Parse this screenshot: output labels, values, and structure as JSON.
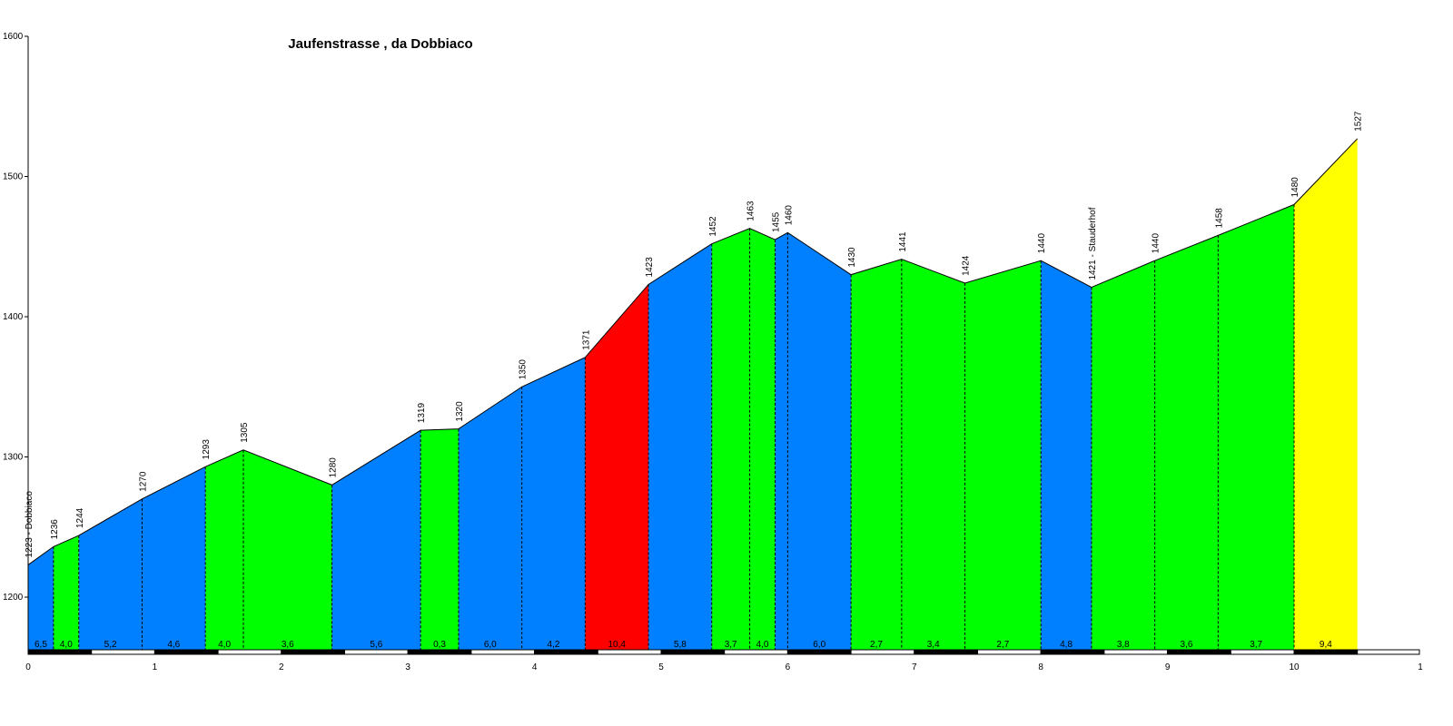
{
  "chart_data": {
    "type": "area",
    "title": "Jaufenstrasse , da Dobbiaco",
    "xlabel": "",
    "ylabel": "",
    "xlim": [
      0,
      11
    ],
    "ylim": [
      1160,
      1600
    ],
    "x_ticks": [
      "0",
      "1",
      "2",
      "3",
      "4",
      "5",
      "6",
      "7",
      "8",
      "9",
      "10",
      "1"
    ],
    "y_ticks": [
      "1200",
      "1300",
      "1400",
      "1500",
      "1600"
    ],
    "grid": false,
    "legend": "none",
    "points": [
      {
        "x": 0.0,
        "y": 1223,
        "label": "1223 - Dobbiaco"
      },
      {
        "x": 0.2,
        "y": 1236,
        "label": "1236"
      },
      {
        "x": 0.4,
        "y": 1244,
        "label": "1244"
      },
      {
        "x": 0.9,
        "y": 1270,
        "label": "1270"
      },
      {
        "x": 1.4,
        "y": 1293,
        "label": "1293"
      },
      {
        "x": 1.7,
        "y": 1305,
        "label": "1305"
      },
      {
        "x": 2.4,
        "y": 1280,
        "label": "1280"
      },
      {
        "x": 3.1,
        "y": 1319,
        "label": "1319"
      },
      {
        "x": 3.4,
        "y": 1320,
        "label": "1320"
      },
      {
        "x": 3.9,
        "y": 1350,
        "label": "1350"
      },
      {
        "x": 4.4,
        "y": 1371,
        "label": "1371"
      },
      {
        "x": 4.9,
        "y": 1423,
        "label": "1423"
      },
      {
        "x": 5.4,
        "y": 1452,
        "label": "1452"
      },
      {
        "x": 5.7,
        "y": 1463,
        "label": "1463"
      },
      {
        "x": 5.9,
        "y": 1455,
        "label": "1455"
      },
      {
        "x": 6.0,
        "y": 1460,
        "label": "1460"
      },
      {
        "x": 6.5,
        "y": 1430,
        "label": "1430"
      },
      {
        "x": 6.9,
        "y": 1441,
        "label": "1441"
      },
      {
        "x": 7.4,
        "y": 1424,
        "label": "1424"
      },
      {
        "x": 8.0,
        "y": 1440,
        "label": "1440"
      },
      {
        "x": 8.4,
        "y": 1421,
        "label": "1421 - Stauderhof"
      },
      {
        "x": 8.9,
        "y": 1440,
        "label": "1440"
      },
      {
        "x": 9.4,
        "y": 1458,
        "label": "1458"
      },
      {
        "x": 10.0,
        "y": 1480,
        "label": "1480"
      },
      {
        "x": 10.5,
        "y": 1527,
        "label": "1527"
      }
    ],
    "segments": [
      {
        "from": 0.0,
        "to": 0.2,
        "gradient": "6,5",
        "color": "#0080ff"
      },
      {
        "from": 0.2,
        "to": 0.4,
        "gradient": "4,0",
        "color": "#00ff00"
      },
      {
        "from": 0.4,
        "to": 0.9,
        "gradient": "5,2",
        "color": "#0080ff"
      },
      {
        "from": 0.9,
        "to": 1.4,
        "gradient": "4,6",
        "color": "#0080ff"
      },
      {
        "from": 1.4,
        "to": 1.7,
        "gradient": "4,0",
        "color": "#00ff00"
      },
      {
        "from": 1.7,
        "to": 2.4,
        "gradient": "3,6",
        "color": "#00ff00"
      },
      {
        "from": 2.4,
        "to": 3.1,
        "gradient": "5,6",
        "color": "#0080ff"
      },
      {
        "from": 3.1,
        "to": 3.4,
        "gradient": "0,3",
        "color": "#00ff00"
      },
      {
        "from": 3.4,
        "to": 3.9,
        "gradient": "6,0",
        "color": "#0080ff"
      },
      {
        "from": 3.9,
        "to": 4.4,
        "gradient": "4,2",
        "color": "#0080ff"
      },
      {
        "from": 4.4,
        "to": 4.9,
        "gradient": "10,4",
        "color": "#ff0000"
      },
      {
        "from": 4.9,
        "to": 5.4,
        "gradient": "5,8",
        "color": "#0080ff"
      },
      {
        "from": 5.4,
        "to": 5.7,
        "gradient": "3,7",
        "color": "#00ff00"
      },
      {
        "from": 5.7,
        "to": 5.9,
        "gradient": "4,0",
        "color": "#00ff00"
      },
      {
        "from": 5.9,
        "to": 6.0,
        "gradient": "",
        "color": "#0080ff"
      },
      {
        "from": 6.0,
        "to": 6.5,
        "gradient": "6,0",
        "color": "#0080ff"
      },
      {
        "from": 6.5,
        "to": 6.9,
        "gradient": "2,7",
        "color": "#00ff00"
      },
      {
        "from": 6.9,
        "to": 7.4,
        "gradient": "3,4",
        "color": "#00ff00"
      },
      {
        "from": 7.4,
        "to": 8.0,
        "gradient": "2,7",
        "color": "#00ff00"
      },
      {
        "from": 8.0,
        "to": 8.4,
        "gradient": "4,8",
        "color": "#0080ff"
      },
      {
        "from": 8.4,
        "to": 8.9,
        "gradient": "3,8",
        "color": "#00ff00"
      },
      {
        "from": 8.9,
        "to": 9.4,
        "gradient": "3,6",
        "color": "#00ff00"
      },
      {
        "from": 9.4,
        "to": 10.0,
        "gradient": "3,7",
        "color": "#00ff00"
      },
      {
        "from": 10.0,
        "to": 10.5,
        "gradient": "9,4",
        "color": "#ffff00"
      }
    ]
  }
}
